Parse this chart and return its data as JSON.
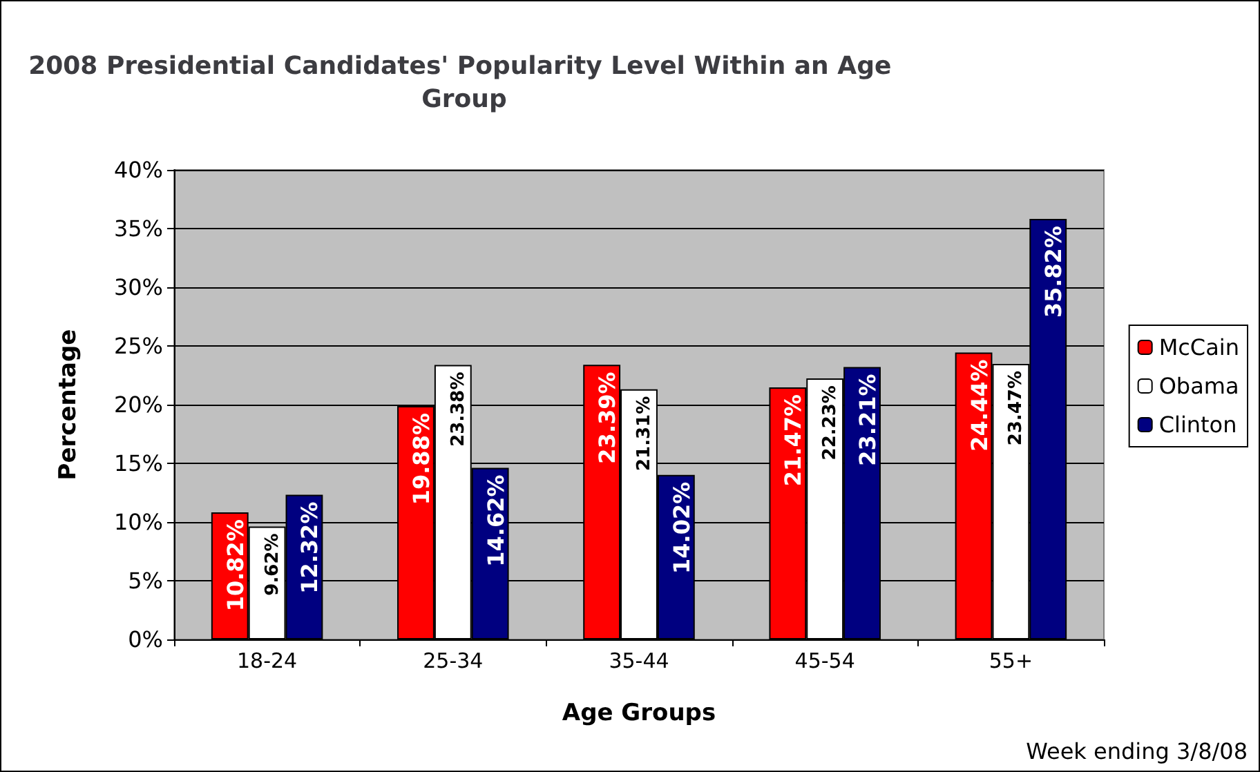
{
  "chart_data": {
    "type": "bar",
    "title": "2008 Presidential Candidates' Popularity Level Within an Age Group",
    "xlabel": "Age Groups",
    "ylabel": "Percentage",
    "categories": [
      "18-24",
      "25-34",
      "35-44",
      "45-54",
      "55+"
    ],
    "series": [
      {
        "name": "McCain",
        "color": "#ff0000",
        "values": [
          10.82,
          19.88,
          23.39,
          21.47,
          24.44
        ],
        "value_labels": [
          "10.82%",
          "19.88%",
          "23.39%",
          "21.47%",
          "24.44%"
        ]
      },
      {
        "name": "Obama",
        "color": "#ffffff",
        "values": [
          9.62,
          23.38,
          21.31,
          22.23,
          23.47
        ],
        "value_labels": [
          "9.62%",
          "23.38%",
          "21.31%",
          "22.23%",
          "23.47%"
        ]
      },
      {
        "name": "Clinton",
        "color": "#000080",
        "values": [
          12.32,
          14.62,
          14.02,
          23.21,
          35.82
        ],
        "value_labels": [
          "12.32%",
          "14.62%",
          "14.02%",
          "23.21%",
          "35.82%"
        ]
      }
    ],
    "ylim": [
      0,
      40
    ],
    "yticks": [
      {
        "value": 0,
        "label": "0%"
      },
      {
        "value": 5,
        "label": "5%"
      },
      {
        "value": 10,
        "label": "10%"
      },
      {
        "value": 15,
        "label": "15%"
      },
      {
        "value": 20,
        "label": "20%"
      },
      {
        "value": 25,
        "label": "25%"
      },
      {
        "value": 30,
        "label": "30%"
      },
      {
        "value": 35,
        "label": "35%"
      },
      {
        "value": 40,
        "label": "40%"
      }
    ],
    "grid": "y",
    "legend": "right",
    "annotations": [
      "Week ending 3/8/08"
    ]
  }
}
